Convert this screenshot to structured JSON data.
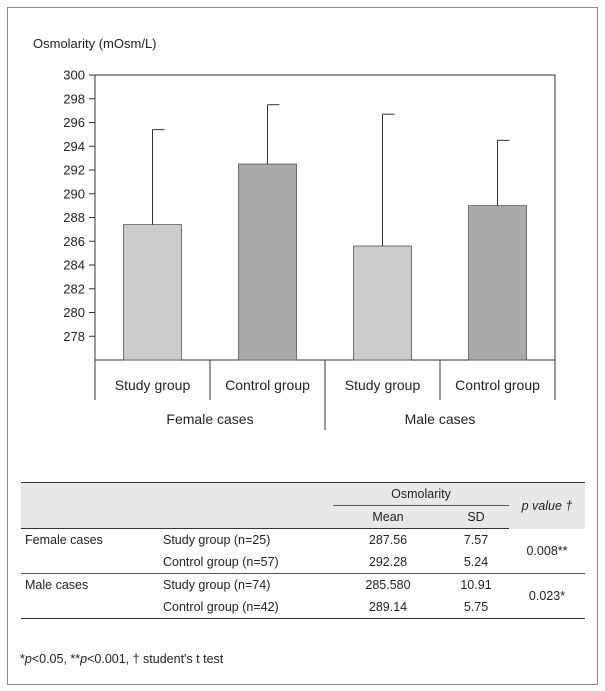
{
  "chart_data": {
    "type": "bar",
    "ylabel": "Osmolarity (mOsm/L)",
    "ylim": [
      276,
      300
    ],
    "yticks": [
      278,
      280,
      282,
      284,
      286,
      288,
      290,
      292,
      294,
      296,
      298,
      300
    ],
    "categories": [
      "Study group",
      "Control group",
      "Study group",
      "Control group"
    ],
    "groups": [
      "Female cases",
      "Male cases"
    ],
    "values": [
      287.4,
      292.5,
      285.6,
      289.0
    ],
    "error_upper": [
      295.4,
      297.5,
      296.7,
      294.5
    ],
    "colors": [
      "#cccccc",
      "#aaaaaa",
      "#cccccc",
      "#aaaaaa"
    ]
  },
  "table": {
    "header_group": "Osmolarity",
    "header_mean": "Mean",
    "header_sd": "SD",
    "header_p": "p value †",
    "rows": [
      {
        "sex": "Female cases",
        "group": "Study group (n=25)",
        "mean": "287.56",
        "sd": "7.57",
        "p": "0.008**"
      },
      {
        "sex": "",
        "group": "Control group (n=57)",
        "mean": "292.28",
        "sd": "5.24",
        "p": ""
      },
      {
        "sex": "Male cases",
        "group": "Study group (n=74)",
        "mean": "285.580",
        "sd": "10.91",
        "p": "0.023*"
      },
      {
        "sex": "",
        "group": "Control group (n=42)",
        "mean": "289.14",
        "sd": "5.75",
        "p": ""
      }
    ]
  },
  "footnote": {
    "p1": "p",
    "t1": "<0.05, **",
    "p2": "p",
    "t2": "<0.001, ",
    "t3": "† student's t test",
    "star": "*"
  }
}
